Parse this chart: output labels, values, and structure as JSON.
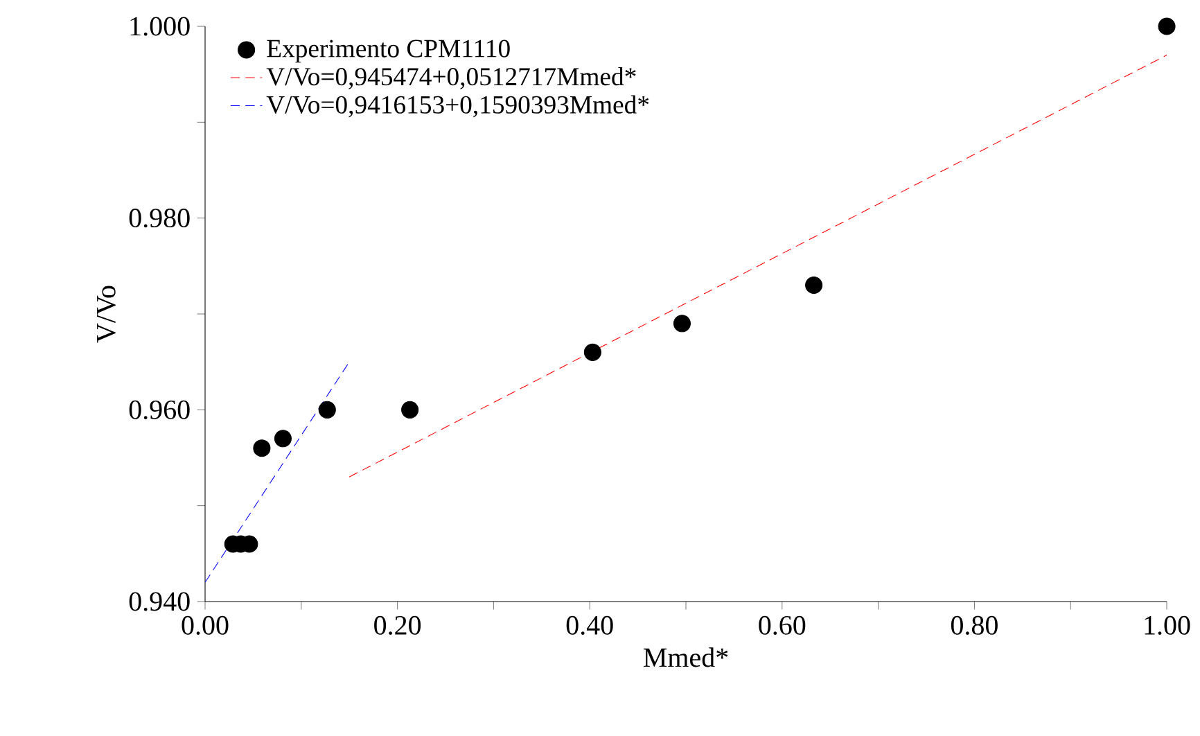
{
  "chart_data": {
    "type": "scatter",
    "xlabel": "Mmed*",
    "ylabel": "V/Vo",
    "xlim": [
      0,
      1
    ],
    "ylim": [
      0.94,
      1.0
    ],
    "xticks": [
      {
        "value": 0,
        "label": "0.00"
      },
      {
        "value": 0.1,
        "label": null
      },
      {
        "value": 0.2,
        "label": "0.20"
      },
      {
        "value": 0.3,
        "label": null
      },
      {
        "value": 0.4,
        "label": "0.40"
      },
      {
        "value": 0.5,
        "label": null
      },
      {
        "value": 0.6,
        "label": "0.60"
      },
      {
        "value": 0.7,
        "label": null
      },
      {
        "value": 0.8,
        "label": "0.80"
      },
      {
        "value": 0.9,
        "label": null
      },
      {
        "value": 1.0,
        "label": "1.00"
      }
    ],
    "yticks": [
      {
        "value": 0.94,
        "label": "0.940"
      },
      {
        "value": 0.95,
        "label": null
      },
      {
        "value": 0.96,
        "label": "0.960"
      },
      {
        "value": 0.97,
        "label": null
      },
      {
        "value": 0.98,
        "label": "0.980"
      },
      {
        "value": 0.99,
        "label": null
      },
      {
        "value": 1.0,
        "label": "1.000"
      }
    ],
    "legend": "top left",
    "grid": false,
    "series": [
      {
        "name": "Experimento CPM1110",
        "marker": "circle",
        "color": "#000000",
        "x": [
          0.029,
          0.037,
          0.046,
          0.059,
          0.081,
          0.127,
          0.213,
          0.403,
          0.496,
          0.633,
          1.0
        ],
        "values": [
          0.946,
          0.946,
          0.946,
          0.956,
          0.957,
          0.96,
          0.96,
          0.966,
          0.969,
          0.973,
          1.0
        ]
      },
      {
        "name": "V/Vo=0,945474+0,0512717Mmed*",
        "type": "line",
        "line_style": "dashed",
        "marker": "none",
        "color": "#ff0000",
        "x": [
          0.15,
          1.0
        ],
        "values": [
          0.953,
          0.997
        ]
      },
      {
        "name": "V/Vo=0,9416153+0,1590393Mmed*",
        "type": "line",
        "line_style": "dashed",
        "marker": "none",
        "color": "#0000ff",
        "x": [
          0.0,
          0.15
        ],
        "values": [
          0.942,
          0.965
        ]
      }
    ]
  }
}
